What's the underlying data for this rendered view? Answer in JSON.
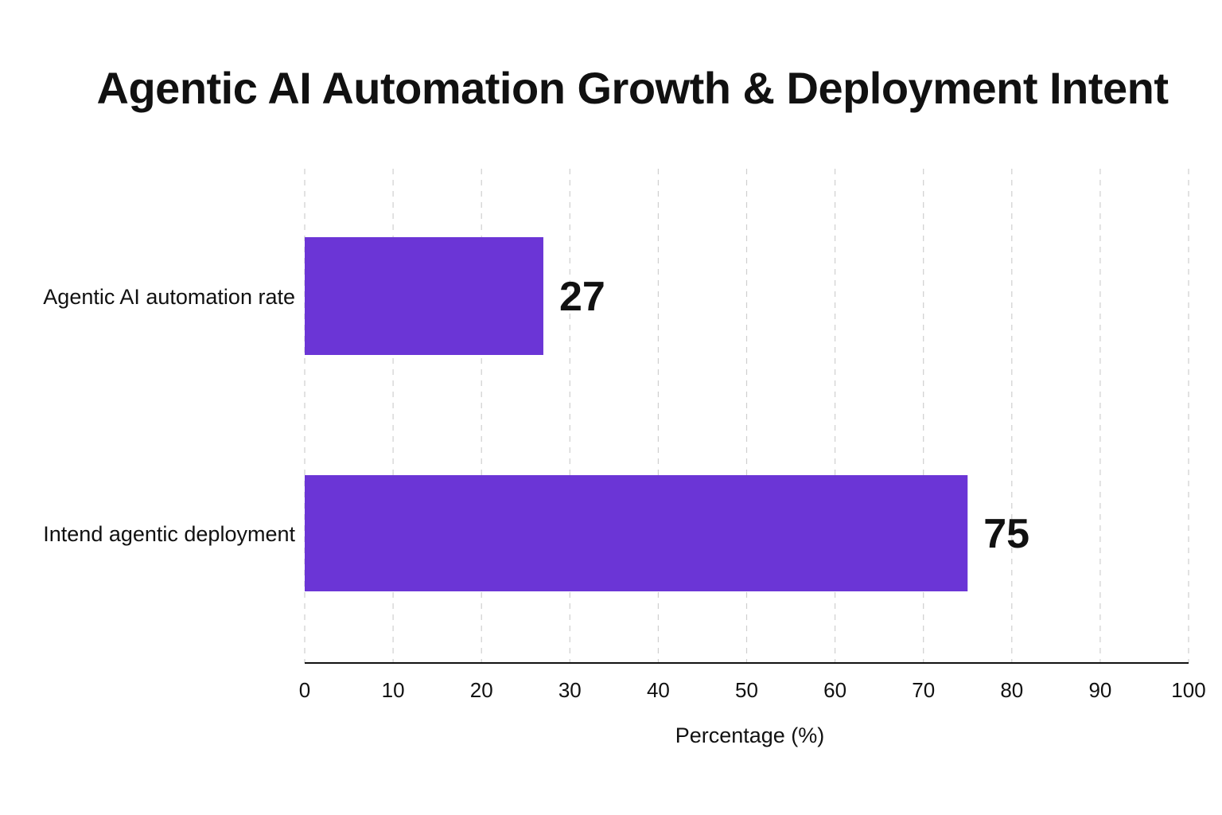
{
  "chart_data": {
    "type": "bar",
    "orientation": "horizontal",
    "title": "Agentic AI Automation Growth & Deployment Intent",
    "xlabel": "Percentage (%)",
    "ylabel": "",
    "categories": [
      "Agentic AI automation rate",
      "Intend agentic deployment"
    ],
    "values": [
      27,
      75
    ],
    "value_labels": [
      "27",
      "75"
    ],
    "xlim": [
      0,
      100
    ],
    "xticks": [
      0,
      10,
      20,
      30,
      40,
      50,
      60,
      70,
      80,
      90,
      100
    ],
    "xtick_labels": [
      "0",
      "10",
      "20",
      "30",
      "40",
      "50",
      "60",
      "70",
      "80",
      "90",
      "100"
    ],
    "grid": "vertical dashed",
    "legend": "none",
    "bar_color": "#6B35D6"
  }
}
